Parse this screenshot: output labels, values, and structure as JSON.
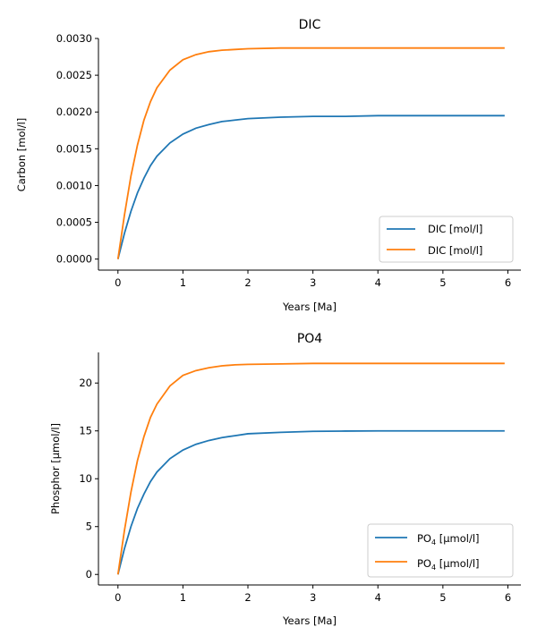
{
  "chart_data": [
    {
      "type": "line",
      "title": "DIC",
      "xlabel": "Years [Ma]",
      "ylabel": "Carbon [mol/l]",
      "xlim": [
        -0.3,
        6.2
      ],
      "ylim": [
        -0.00015,
        0.003
      ],
      "xticks": [
        "0",
        "1",
        "2",
        "3",
        "4",
        "5",
        "6"
      ],
      "yticks": [
        "0.0000",
        "0.0005",
        "0.0010",
        "0.0015",
        "0.0020",
        "0.0025",
        "0.0030"
      ],
      "legend_position": "lower-right",
      "grid": false,
      "x": [
        0,
        0.1,
        0.2,
        0.3,
        0.4,
        0.5,
        0.6,
        0.8,
        1.0,
        1.2,
        1.4,
        1.6,
        1.8,
        2.0,
        2.5,
        3.0,
        3.5,
        4.0,
        4.5,
        5.0,
        5.5,
        5.95
      ],
      "series": [
        {
          "name": "DIC [mol/l]",
          "color": "#1f77b4",
          "values": [
            0.0,
            0.00035,
            0.00065,
            0.0009,
            0.0011,
            0.00127,
            0.0014,
            0.00158,
            0.0017,
            0.00178,
            0.00183,
            0.00187,
            0.00189,
            0.00191,
            0.00193,
            0.00194,
            0.00194,
            0.00195,
            0.00195,
            0.00195,
            0.00195,
            0.00195
          ]
        },
        {
          "name": "DIC [mol/l]",
          "color": "#ff7f0e",
          "values": [
            0.0,
            0.0006,
            0.00113,
            0.00155,
            0.00189,
            0.00214,
            0.00233,
            0.00257,
            0.00271,
            0.00278,
            0.00282,
            0.00284,
            0.00285,
            0.00286,
            0.00287,
            0.00287,
            0.00287,
            0.00287,
            0.00287,
            0.00287,
            0.00287,
            0.00287
          ]
        }
      ]
    },
    {
      "type": "line",
      "title": "PO4",
      "xlabel": "Years [Ma]",
      "ylabel": "Phosphor [µmol/l]",
      "xlim": [
        -0.3,
        6.2
      ],
      "ylim": [
        -1.1,
        23.2
      ],
      "xticks": [
        "0",
        "1",
        "2",
        "3",
        "4",
        "5",
        "6"
      ],
      "yticks": [
        "0",
        "5",
        "10",
        "15",
        "20"
      ],
      "legend_position": "lower-right",
      "grid": false,
      "x": [
        0,
        0.1,
        0.2,
        0.3,
        0.4,
        0.5,
        0.6,
        0.8,
        1.0,
        1.2,
        1.4,
        1.6,
        1.8,
        2.0,
        2.5,
        3.0,
        3.5,
        4.0,
        4.5,
        5.0,
        5.5,
        5.95
      ],
      "series": [
        {
          "name": "PO4 [µmol/l]",
          "name_main": "PO",
          "name_sub": "4",
          "name_rest": " [µmol/l]",
          "color": "#1f77b4",
          "values": [
            0.0,
            2.7,
            5.0,
            6.9,
            8.4,
            9.7,
            10.7,
            12.1,
            13.0,
            13.6,
            14.0,
            14.3,
            14.5,
            14.7,
            14.85,
            14.95,
            14.98,
            15.0,
            15.0,
            15.0,
            15.0,
            15.0
          ]
        },
        {
          "name": "PO4 [µmol/l]",
          "name_main": "PO",
          "name_sub": "4",
          "name_rest": " [µmol/l]",
          "color": "#ff7f0e",
          "values": [
            0.0,
            4.6,
            8.6,
            11.9,
            14.4,
            16.4,
            17.8,
            19.7,
            20.8,
            21.3,
            21.6,
            21.8,
            21.9,
            21.95,
            22.0,
            22.05,
            22.05,
            22.05,
            22.05,
            22.05,
            22.05,
            22.05
          ]
        }
      ]
    }
  ]
}
